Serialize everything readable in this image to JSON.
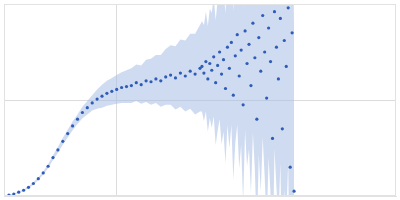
{
  "chart_data": {
    "type": "scatter",
    "x": [
      0.05,
      0.1,
      0.15,
      0.2,
      0.25,
      0.3,
      0.35,
      0.4,
      0.45,
      0.5,
      0.55,
      0.6,
      0.65,
      0.7,
      0.75,
      0.8,
      0.85,
      0.9,
      0.95,
      1.0,
      1.05,
      1.1,
      1.15,
      1.2,
      1.25,
      1.3,
      1.35,
      1.4,
      1.45,
      1.5,
      1.55,
      1.6,
      1.65,
      1.7,
      1.75,
      1.8,
      1.85,
      1.9,
      1.95,
      2.0,
      2.02,
      2.04,
      2.06,
      2.08,
      2.1,
      2.12,
      2.14,
      2.16,
      2.18,
      2.2,
      2.22,
      2.24,
      2.26,
      2.28,
      2.3,
      2.32,
      2.34,
      2.36,
      2.38,
      2.4,
      2.42,
      2.44,
      2.46,
      2.48,
      2.5,
      2.52,
      2.54,
      2.56,
      2.58,
      2.6,
      2.62,
      2.64,
      2.66,
      2.68,
      2.7,
      2.72,
      2.74,
      2.76,
      2.78,
      2.8,
      2.82,
      2.84,
      2.86,
      2.88,
      2.9,
      2.92,
      2.94,
      2.96
    ],
    "values": [
      0.01,
      0.02,
      0.04,
      0.06,
      0.09,
      0.13,
      0.18,
      0.24,
      0.31,
      0.4,
      0.48,
      0.57,
      0.65,
      0.73,
      0.8,
      0.87,
      0.92,
      0.97,
      1.01,
      1.04,
      1.07,
      1.09,
      1.11,
      1.13,
      1.14,
      1.15,
      1.18,
      1.16,
      1.2,
      1.19,
      1.22,
      1.2,
      1.24,
      1.26,
      1.23,
      1.28,
      1.25,
      1.3,
      1.27,
      1.33,
      1.35,
      1.28,
      1.4,
      1.22,
      1.38,
      1.31,
      1.45,
      1.18,
      1.36,
      1.5,
      1.27,
      1.42,
      1.12,
      1.55,
      1.33,
      1.6,
      1.05,
      1.46,
      1.68,
      1.25,
      1.52,
      0.95,
      1.72,
      1.38,
      1.58,
      1.15,
      1.8,
      1.44,
      0.8,
      1.65,
      1.3,
      1.88,
      1.5,
      1.02,
      1.75,
      1.4,
      0.6,
      1.92,
      1.55,
      1.22,
      1.85,
      0.7,
      1.62,
      1.35,
      1.96,
      0.3,
      1.7,
      0.05
    ],
    "errors": [
      0.005,
      0.005,
      0.006,
      0.008,
      0.01,
      0.012,
      0.014,
      0.016,
      0.02,
      0.024,
      0.03,
      0.035,
      0.04,
      0.045,
      0.05,
      0.06,
      0.07,
      0.08,
      0.1,
      0.12,
      0.13,
      0.14,
      0.15,
      0.16,
      0.17,
      0.18,
      0.19,
      0.2,
      0.22,
      0.24,
      0.25,
      0.27,
      0.29,
      0.31,
      0.33,
      0.35,
      0.37,
      0.39,
      0.42,
      0.45,
      0.47,
      0.5,
      0.52,
      0.55,
      0.57,
      0.6,
      0.62,
      0.65,
      0.68,
      0.7,
      0.73,
      0.75,
      0.78,
      0.81,
      0.83,
      0.86,
      0.88,
      0.91,
      0.94,
      0.96,
      0.99,
      1.01,
      1.04,
      1.07,
      1.09,
      1.12,
      1.14,
      1.17,
      1.2,
      1.22,
      1.25,
      1.27,
      1.3,
      1.33,
      1.35,
      1.38,
      1.4,
      1.43,
      1.46,
      1.48,
      1.51,
      1.53,
      1.56,
      1.59,
      1.61,
      1.64,
      1.66,
      1.69
    ],
    "color": "#2e5cb8",
    "xlim": [
      0,
      4
    ],
    "ylim": [
      0,
      2
    ],
    "xticks": [
      1.15
    ],
    "yticks": [
      1
    ],
    "grid": true,
    "tick_labels": false
  }
}
